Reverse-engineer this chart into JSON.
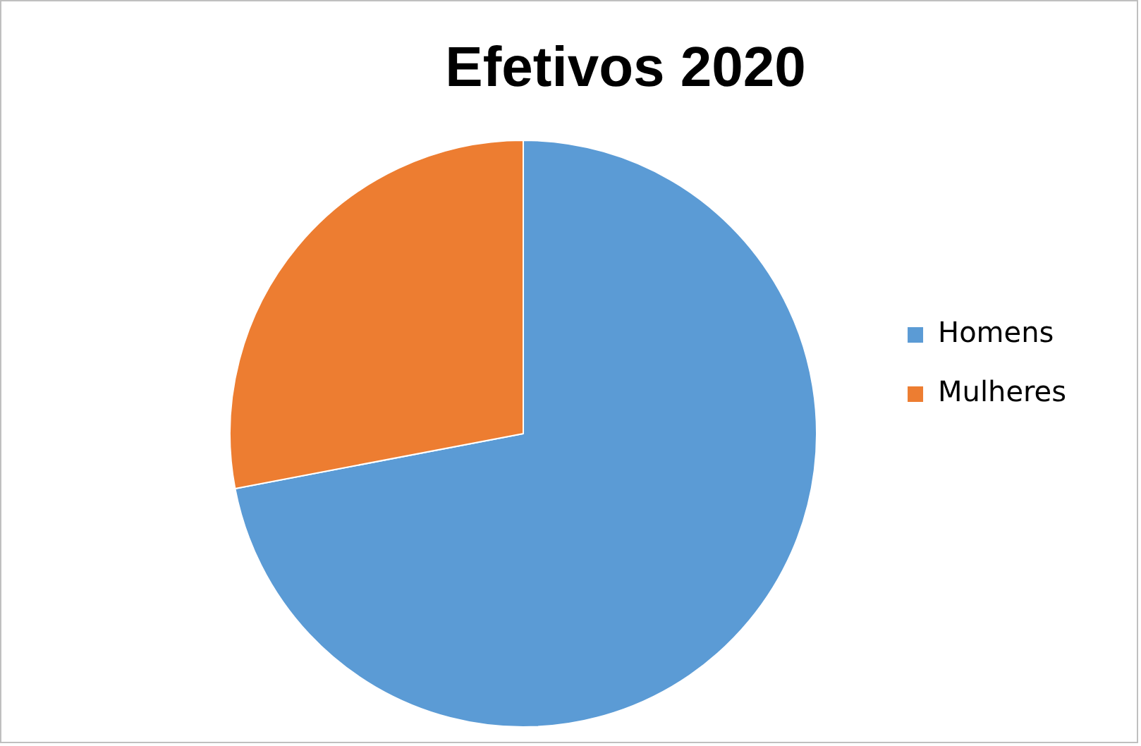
{
  "chart_data": {
    "type": "pie",
    "title": "Efetivos 2020",
    "categories": [
      "Homens",
      "Mulheres"
    ],
    "values": [
      72,
      28
    ],
    "colors": [
      "#5b9bd5",
      "#ed7d31"
    ],
    "legend": "right"
  }
}
